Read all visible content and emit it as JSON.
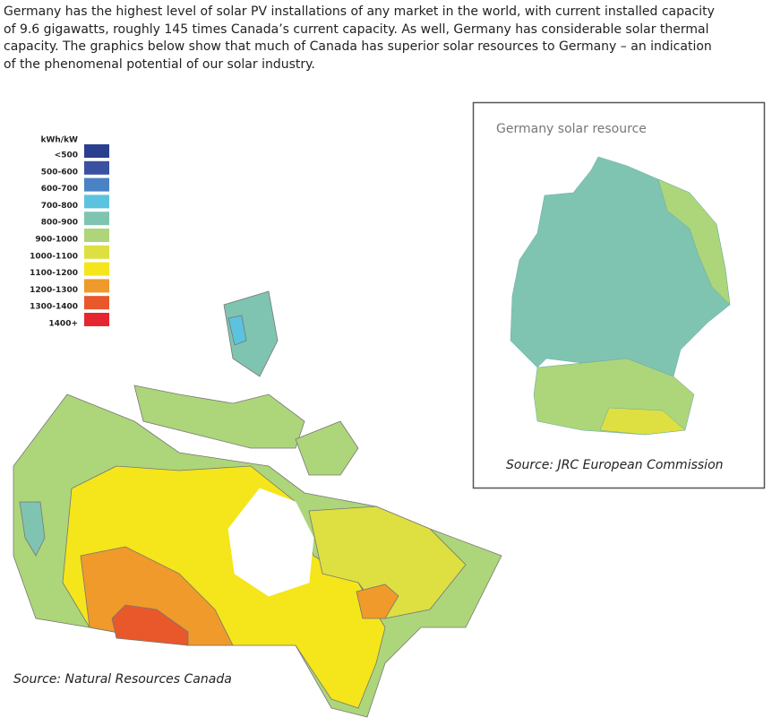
{
  "intro": {
    "lines": [
      "Germany has the highest level of solar PV installations of any market in the world, with current installed capacity",
      "of 9.6 gigawatts, roughly 145 times Canada’s current capacity. As well, Germany has considerable solar thermal",
      "capacity. The graphics below show that much of Canada has superior solar resources to Germany – an indication",
      "of the phenomenal potential of our solar industry."
    ]
  },
  "legend": {
    "title": "kWh/kW",
    "items": [
      {
        "label": "<500",
        "color": "#2b3f8f"
      },
      {
        "label": "500-600",
        "color": "#3a50a0"
      },
      {
        "label": "600-700",
        "color": "#4a82c4"
      },
      {
        "label": "700-800",
        "color": "#5bc3e0"
      },
      {
        "label": "800-900",
        "color": "#7fc4b0"
      },
      {
        "label": "900-1000",
        "color": "#add57a"
      },
      {
        "label": "1000-1100",
        "color": "#dde040"
      },
      {
        "label": "1100-1200",
        "color": "#f5e51b"
      },
      {
        "label": "1200-1300",
        "color": "#ef9a2a"
      },
      {
        "label": "1300-1400",
        "color": "#e8582a"
      },
      {
        "label": "1400+",
        "color": "#e52630"
      }
    ]
  },
  "germany_map": {
    "title": "Germany solar resource",
    "source": "Source: JRC European Commission"
  },
  "canada_map": {
    "source": "Source: Natural Resources Canada"
  }
}
